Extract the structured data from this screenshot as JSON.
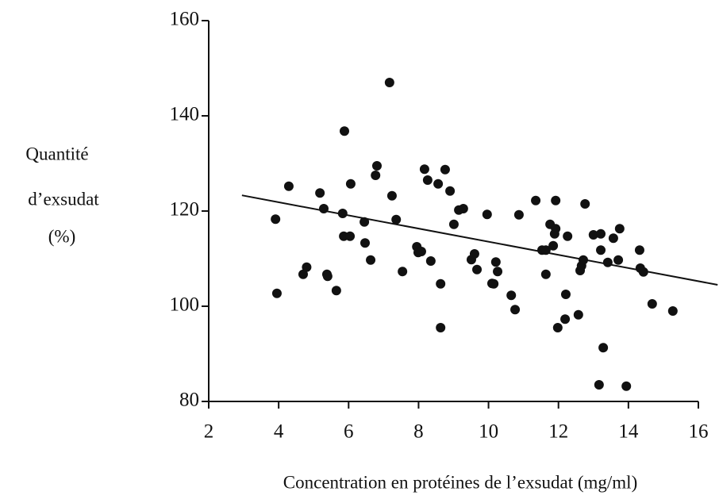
{
  "chart_data": {
    "type": "scatter",
    "xlabel": "Concentration en protéines de l’exsudat  (mg/ml)",
    "ylabel": [
      "Quantité",
      "d’exsudat",
      "(%)"
    ],
    "xlim": [
      2,
      16
    ],
    "ylim": [
      80,
      160
    ],
    "xticks": [
      2,
      4,
      6,
      8,
      10,
      12,
      14,
      16
    ],
    "yticks": [
      80,
      100,
      120,
      140,
      160
    ],
    "color": "#111111",
    "x": [
      3.91,
      3.95,
      4.29,
      4.7,
      4.8,
      5.18,
      5.29,
      5.38,
      5.4,
      5.65,
      5.83,
      5.88,
      5.86,
      6.04,
      6.06,
      6.45,
      6.47,
      6.63,
      6.77,
      6.81,
      7.17,
      7.24,
      7.36,
      7.54,
      7.95,
      7.99,
      8.08,
      8.17,
      8.26,
      8.35,
      8.56,
      8.63,
      8.63,
      8.76,
      8.9,
      9.01,
      9.15,
      9.28,
      9.51,
      9.6,
      9.67,
      9.96,
      10.1,
      10.15,
      10.21,
      10.26,
      10.65,
      10.76,
      10.87,
      11.35,
      11.53,
      11.64,
      11.64,
      11.76,
      11.85,
      11.89,
      11.92,
      11.92,
      11.98,
      12.19,
      12.21,
      12.26,
      12.57,
      12.62,
      12.66,
      12.71,
      12.76,
      13.0,
      13.21,
      13.16,
      13.28,
      13.21,
      13.41,
      13.57,
      13.75,
      13.71,
      13.94,
      14.32,
      14.34,
      14.43,
      14.68,
      15.27
    ],
    "values": [
      118.3,
      102.7,
      125.2,
      106.7,
      108.2,
      123.8,
      120.5,
      106.7,
      106.3,
      103.3,
      119.5,
      136.8,
      114.7,
      114.7,
      125.7,
      117.7,
      113.3,
      109.7,
      127.5,
      129.5,
      147.0,
      123.2,
      118.2,
      107.3,
      112.5,
      111.3,
      111.5,
      128.8,
      126.5,
      109.5,
      125.7,
      95.5,
      104.7,
      128.7,
      124.2,
      117.2,
      120.2,
      120.5,
      109.8,
      111.0,
      107.7,
      119.3,
      104.8,
      104.7,
      109.3,
      107.3,
      102.3,
      99.3,
      119.2,
      122.2,
      111.8,
      111.8,
      106.7,
      117.2,
      112.7,
      115.2,
      116.3,
      122.2,
      95.5,
      97.3,
      102.5,
      114.7,
      98.2,
      107.5,
      108.5,
      109.7,
      121.5,
      115.0,
      115.2,
      83.5,
      91.3,
      111.8,
      109.2,
      114.3,
      116.3,
      109.7,
      83.2,
      111.8,
      108.0,
      107.2,
      100.5,
      99.0
    ],
    "trendline": {
      "x": [
        2.95,
        16.55
      ],
      "y": [
        123.3,
        104.5
      ]
    }
  }
}
